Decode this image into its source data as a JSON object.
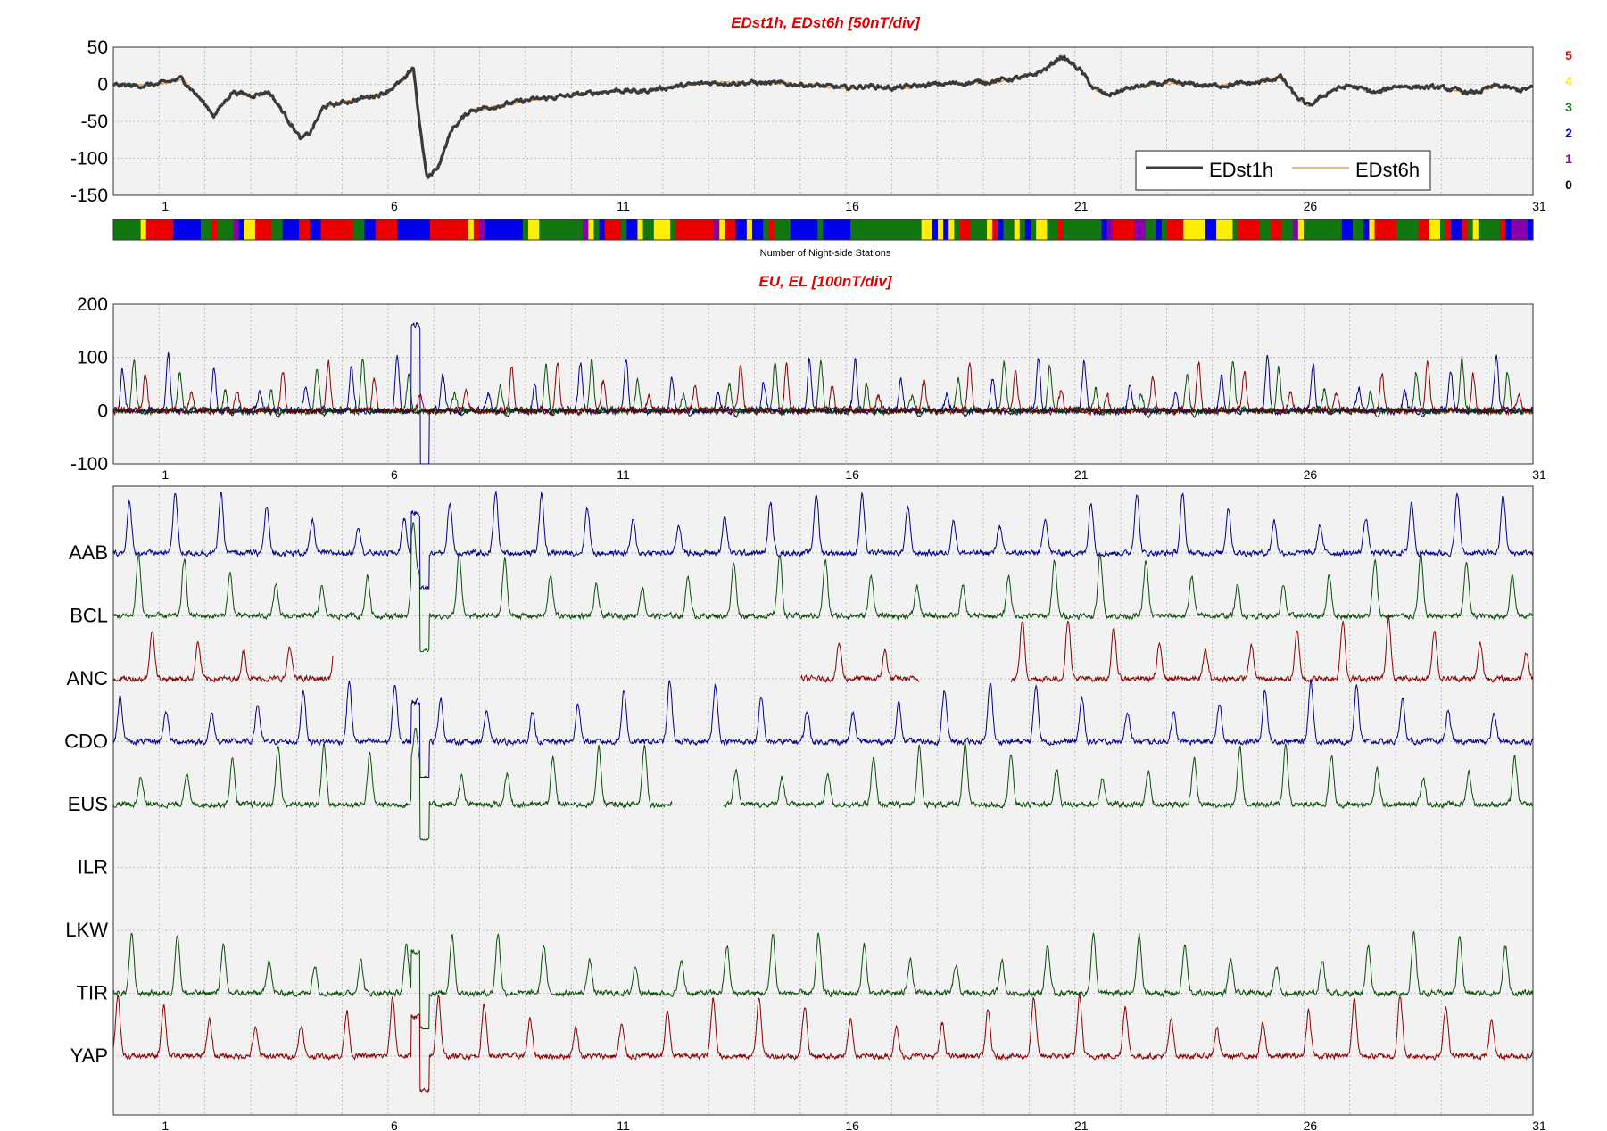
{
  "chart_data": [
    {
      "id": "dst",
      "type": "line",
      "title": "EDst1h, EDst6h [50nT/div]",
      "ylim": [
        -150,
        50
      ],
      "yticks": [
        50,
        0,
        -50,
        -100,
        -150
      ],
      "xlim": [
        0,
        31
      ],
      "xticks": [
        1,
        6,
        11,
        16,
        21,
        26,
        31
      ],
      "grid": true,
      "legend": "bottom-right",
      "series": [
        {
          "name": "EDst1h",
          "color": "#3a3a3a",
          "keypoints": [
            [
              0,
              -1
            ],
            [
              0.5,
              -2
            ],
            [
              1,
              0
            ],
            [
              1.5,
              8
            ],
            [
              1.9,
              -20
            ],
            [
              2.2,
              -42
            ],
            [
              2.6,
              -10
            ],
            [
              3,
              -15
            ],
            [
              3.4,
              -10
            ],
            [
              3.6,
              -28
            ],
            [
              3.9,
              -55
            ],
            [
              4.1,
              -75
            ],
            [
              4.3,
              -65
            ],
            [
              4.6,
              -30
            ],
            [
              5,
              -25
            ],
            [
              5.5,
              -18
            ],
            [
              5.9,
              -12
            ],
            [
              6.2,
              0
            ],
            [
              6.4,
              8
            ],
            [
              6.55,
              25
            ],
            [
              6.7,
              -60
            ],
            [
              6.85,
              -128
            ],
            [
              7.1,
              -110
            ],
            [
              7.4,
              -60
            ],
            [
              7.8,
              -35
            ],
            [
              8.3,
              -30
            ],
            [
              9,
              -22
            ],
            [
              10,
              -15
            ],
            [
              11,
              -8
            ],
            [
              11.5,
              -10
            ],
            [
              12,
              -5
            ],
            [
              13,
              2
            ],
            [
              14,
              2
            ],
            [
              15,
              0
            ],
            [
              16,
              -5
            ],
            [
              16.5,
              -2
            ],
            [
              17,
              -5
            ],
            [
              18,
              0
            ],
            [
              19,
              3
            ],
            [
              20,
              10
            ],
            [
              20.4,
              22
            ],
            [
              20.7,
              38
            ],
            [
              21.1,
              20
            ],
            [
              21.4,
              -5
            ],
            [
              21.7,
              -15
            ],
            [
              22.2,
              -5
            ],
            [
              23,
              2
            ],
            [
              24,
              -2
            ],
            [
              25,
              2
            ],
            [
              25.5,
              10
            ],
            [
              25.8,
              -15
            ],
            [
              26.1,
              -30
            ],
            [
              26.6,
              -8
            ],
            [
              27,
              -2
            ],
            [
              27.6,
              -12
            ],
            [
              28,
              -2
            ],
            [
              29,
              -5
            ],
            [
              29.7,
              -12
            ],
            [
              30.2,
              -2
            ],
            [
              30.7,
              -8
            ],
            [
              31,
              -5
            ]
          ],
          "noise": 5
        },
        {
          "name": "EDst6h",
          "color": "#e8a050",
          "keypoints": [
            [
              0,
              -1
            ],
            [
              0.5,
              -2
            ],
            [
              1,
              0
            ],
            [
              1.5,
              8
            ],
            [
              1.9,
              -20
            ],
            [
              2.2,
              -42
            ],
            [
              2.6,
              -10
            ],
            [
              3,
              -15
            ],
            [
              3.4,
              -10
            ],
            [
              3.6,
              -28
            ],
            [
              3.9,
              -55
            ],
            [
              4.1,
              -75
            ],
            [
              4.3,
              -65
            ],
            [
              4.6,
              -30
            ],
            [
              5,
              -25
            ],
            [
              5.5,
              -18
            ],
            [
              5.9,
              -12
            ],
            [
              6.2,
              0
            ],
            [
              6.4,
              8
            ],
            [
              6.55,
              25
            ],
            [
              6.7,
              -60
            ],
            [
              6.85,
              -128
            ],
            [
              7.1,
              -110
            ],
            [
              7.4,
              -60
            ],
            [
              7.8,
              -35
            ],
            [
              8.3,
              -30
            ],
            [
              9,
              -22
            ],
            [
              10,
              -15
            ],
            [
              11,
              -8
            ],
            [
              11.5,
              -10
            ],
            [
              12,
              -5
            ],
            [
              13,
              2
            ],
            [
              14,
              2
            ],
            [
              15,
              0
            ],
            [
              16,
              -5
            ],
            [
              16.5,
              -2
            ],
            [
              17,
              -5
            ],
            [
              18,
              0
            ],
            [
              19,
              3
            ],
            [
              20,
              10
            ],
            [
              20.4,
              22
            ],
            [
              20.7,
              38
            ],
            [
              21.1,
              20
            ],
            [
              21.4,
              -5
            ],
            [
              21.7,
              -15
            ],
            [
              22.2,
              -5
            ],
            [
              23,
              2
            ],
            [
              24,
              -2
            ],
            [
              25,
              2
            ],
            [
              25.5,
              10
            ],
            [
              25.8,
              -15
            ],
            [
              26.1,
              -30
            ],
            [
              26.6,
              -8
            ],
            [
              27,
              -2
            ],
            [
              27.6,
              -12
            ],
            [
              28,
              -2
            ],
            [
              29,
              -5
            ],
            [
              29.7,
              -12
            ],
            [
              30.2,
              -2
            ],
            [
              30.7,
              -8
            ],
            [
              31,
              -5
            ]
          ],
          "noise": 3
        }
      ]
    },
    {
      "id": "stations_bar",
      "type": "heatmap",
      "xlabel": "Number of Night-side Stations",
      "scale": [
        {
          "label": "5",
          "color": "#ee0000"
        },
        {
          "label": "4",
          "color": "#ffee00"
        },
        {
          "label": "3",
          "color": "#117711"
        },
        {
          "label": "2",
          "color": "#0000ee"
        },
        {
          "label": "1",
          "color": "#8800aa"
        },
        {
          "label": "0",
          "color": "#000000"
        }
      ],
      "segments": 260
    },
    {
      "id": "eu_el",
      "type": "line",
      "title": "EU, EL   [100nT/div]",
      "ylim": [
        -100,
        200
      ],
      "yticks": [
        200,
        100,
        0,
        -100
      ],
      "xlim": [
        0,
        31
      ],
      "xticks": [
        1,
        6,
        11,
        16,
        21,
        26,
        31
      ],
      "grid": true,
      "series": [
        {
          "color": "#00008b",
          "phase": 0.2,
          "amp": 90
        },
        {
          "color": "#0a4d0a",
          "phase": 0.45,
          "amp": 85
        },
        {
          "color": "#8b0000",
          "phase": 0.7,
          "amp": 80
        },
        {
          "color": "#1a1a1a",
          "phase": 0.6,
          "amp": 70
        }
      ]
    },
    {
      "id": "stations",
      "type": "line",
      "xlim": [
        0,
        31
      ],
      "xticks": [
        1,
        6,
        11,
        16,
        21,
        26,
        31
      ],
      "grid": true,
      "stations": [
        {
          "name": "AAB",
          "color": "#00008b",
          "phase": 0.35
        },
        {
          "name": "BCL",
          "color": "#0a4d0a",
          "phase": 0.55
        },
        {
          "name": "ANC",
          "color": "#8b0000",
          "phase": 0.85,
          "gaps": [
            [
              4.8,
              15
            ],
            [
              17.6,
              19.6
            ]
          ]
        },
        {
          "name": "CDO",
          "color": "#00008b",
          "phase": 0.15
        },
        {
          "name": "EUS",
          "color": "#0a4d0a",
          "phase": 0.6,
          "gaps": [
            [
              12.2,
              13.3
            ]
          ]
        },
        {
          "name": "ILR",
          "color": "#000000",
          "phase": 0.0,
          "empty": true
        },
        {
          "name": "LKW",
          "color": "#0a4d0a",
          "phase": 0.3,
          "empty": true
        },
        {
          "name": "TIR",
          "color": "#0a4d0a",
          "phase": 0.4
        },
        {
          "name": "YAP",
          "color": "#8b0000",
          "phase": 0.1
        }
      ]
    }
  ]
}
